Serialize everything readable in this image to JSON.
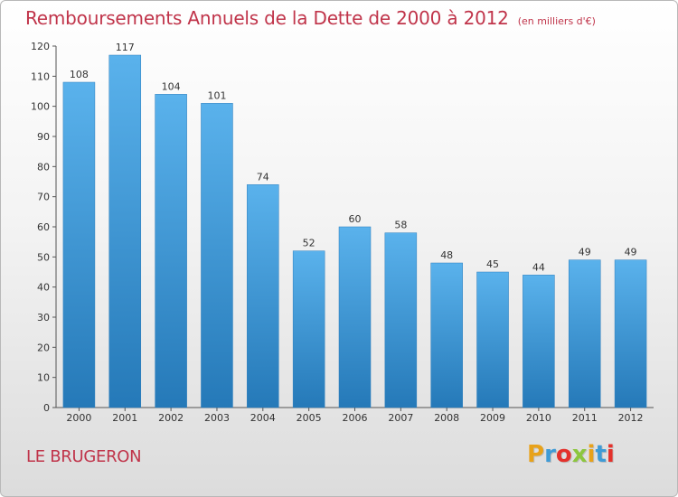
{
  "header": {
    "title": "Remboursements Annuels de la Dette de 2000 à 2012",
    "subtitle": "(en milliers d'€)"
  },
  "footer": {
    "place": "LE BRUGERON",
    "logo_letters": [
      "P",
      "r",
      "o",
      "x",
      "i",
      "t",
      "i"
    ],
    "logo_colors": [
      "#e8a21a",
      "#3f9bd6",
      "#e4312b",
      "#8cc63e",
      "#e8a21a",
      "#3f9bd6",
      "#e4312b"
    ]
  },
  "colors": {
    "bar_top": "#5ab2ec",
    "bar_bottom": "#2579b8",
    "title": "#c0344a"
  },
  "chart_data": {
    "type": "bar",
    "title": "Remboursements Annuels de la Dette de 2000 à 2012",
    "subtitle": "(en milliers d'€)",
    "categories": [
      "2000",
      "2001",
      "2002",
      "2003",
      "2004",
      "2005",
      "2006",
      "2007",
      "2008",
      "2009",
      "2010",
      "2011",
      "2012"
    ],
    "values": [
      108,
      117,
      104,
      101,
      74,
      52,
      60,
      58,
      48,
      45,
      44,
      49,
      49
    ],
    "ylim": [
      0,
      120
    ],
    "yticks": [
      0,
      10,
      20,
      30,
      40,
      50,
      60,
      70,
      80,
      90,
      100,
      110,
      120
    ],
    "grid": false,
    "data_labels": true
  }
}
